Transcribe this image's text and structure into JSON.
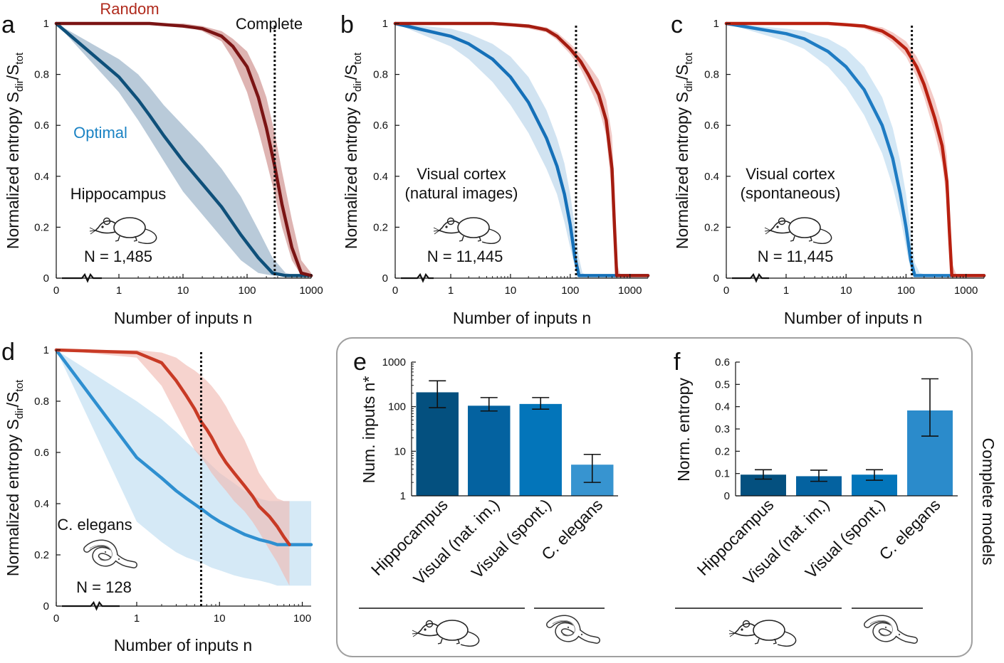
{
  "chart_data": [
    {
      "panel": "a",
      "type": "line",
      "annotation": "Hippocampus",
      "n_label": "N = 1,485",
      "xlabel": "Number of inputs n",
      "ylabel": "Normalized entropy S",
      "ylabel_sub1": "dir",
      "ylabel_mid": "/S",
      "ylabel_sub2": "tot",
      "x_ticks": [
        "0",
        "1",
        "10",
        "100",
        "1000"
      ],
      "y_ticks": [
        "0",
        "0.2",
        "0.4",
        "0.6",
        "0.8",
        "1"
      ],
      "xlim": [
        1,
        1000
      ],
      "ylim": [
        0,
        1
      ],
      "complete_x": 270,
      "complete_label": "Complete",
      "series": [
        {
          "name": "Random",
          "color": "#7b1414",
          "band_color": "#c98683",
          "x": [
            0,
            1,
            3,
            10,
            20,
            40,
            60,
            100,
            150,
            200,
            270,
            350,
            500,
            700,
            1000
          ],
          "y": [
            1,
            1,
            1,
            0.99,
            0.98,
            0.95,
            0.91,
            0.83,
            0.71,
            0.59,
            0.44,
            0.29,
            0.12,
            0.02,
            0.01
          ],
          "y_low": [
            1,
            1,
            1,
            0.99,
            0.97,
            0.93,
            0.86,
            0.73,
            0.58,
            0.46,
            0.33,
            0.2,
            0.07,
            0.01,
            0.01
          ],
          "y_high": [
            1,
            1,
            1,
            1,
            0.99,
            0.97,
            0.94,
            0.89,
            0.8,
            0.71,
            0.57,
            0.42,
            0.23,
            0.07,
            0.02
          ]
        },
        {
          "name": "Optimal",
          "color": "#0f507a",
          "band_color": "#8eaac2",
          "x": [
            0,
            1,
            2,
            3,
            5,
            10,
            20,
            40,
            80,
            150,
            250,
            400,
            600,
            1000
          ],
          "y": [
            1,
            0.79,
            0.7,
            0.64,
            0.56,
            0.46,
            0.37,
            0.28,
            0.17,
            0.08,
            0.02,
            0.01,
            0.01,
            0.01
          ],
          "y_low": [
            1,
            0.73,
            0.62,
            0.55,
            0.46,
            0.34,
            0.25,
            0.16,
            0.07,
            0.02,
            0.01,
            0.01,
            0.01,
            0.01
          ],
          "y_high": [
            1,
            0.86,
            0.8,
            0.75,
            0.68,
            0.6,
            0.52,
            0.43,
            0.32,
            0.19,
            0.08,
            0.02,
            0.01,
            0.01
          ]
        }
      ]
    },
    {
      "panel": "b",
      "type": "line",
      "annotation_line1": "Visual cortex",
      "annotation_line2": "(natural images)",
      "n_label": "N = 11,445",
      "xlabel": "Number of inputs n",
      "ylabel": "Normalized entropy S",
      "ylabel_sub1": "dir",
      "ylabel_mid": "/S",
      "ylabel_sub2": "tot",
      "x_ticks": [
        "0",
        "1",
        "10",
        "100",
        "1000"
      ],
      "y_ticks": [
        "0",
        "0.2",
        "0.4",
        "0.6",
        "0.8",
        "1"
      ],
      "xlim": [
        1,
        2000
      ],
      "ylim": [
        0,
        1
      ],
      "complete_x": 125,
      "series": [
        {
          "name": "Random",
          "color": "#a41c10",
          "band_color": "#e9a8a3",
          "x": [
            0,
            1,
            5,
            10,
            20,
            40,
            60,
            100,
            150,
            200,
            300,
            400,
            500,
            550,
            600,
            700,
            1000,
            2000
          ],
          "y": [
            1,
            1,
            1,
            0.995,
            0.99,
            0.975,
            0.95,
            0.9,
            0.85,
            0.8,
            0.72,
            0.62,
            0.43,
            0.2,
            0.01,
            0.01,
            0.01,
            0.01
          ],
          "y_low": [
            1,
            1,
            1,
            0.99,
            0.98,
            0.965,
            0.935,
            0.88,
            0.82,
            0.76,
            0.67,
            0.56,
            0.33,
            0.1,
            0.01,
            0.01,
            0.01,
            0.01
          ],
          "y_high": [
            1,
            1,
            1,
            1,
            0.995,
            0.985,
            0.965,
            0.92,
            0.88,
            0.84,
            0.78,
            0.7,
            0.56,
            0.35,
            0.06,
            0.01,
            0.01,
            0.01
          ]
        },
        {
          "name": "Optimal",
          "color": "#1570b8",
          "band_color": "#b4d2e8",
          "x": [
            0,
            1,
            2,
            5,
            10,
            20,
            40,
            60,
            80,
            100,
            120,
            140,
            160,
            200,
            300,
            2000
          ],
          "y": [
            1,
            0.95,
            0.92,
            0.86,
            0.79,
            0.69,
            0.55,
            0.44,
            0.33,
            0.21,
            0.08,
            0.01,
            0.01,
            0.01,
            0.01,
            0.01
          ],
          "y_low": [
            1,
            0.91,
            0.86,
            0.77,
            0.68,
            0.57,
            0.43,
            0.33,
            0.22,
            0.12,
            0.04,
            0.01,
            0.01,
            0.01,
            0.01,
            0.01
          ],
          "y_high": [
            1,
            0.98,
            0.96,
            0.92,
            0.87,
            0.79,
            0.66,
            0.55,
            0.45,
            0.33,
            0.2,
            0.08,
            0.02,
            0.01,
            0.01,
            0.01
          ]
        }
      ]
    },
    {
      "panel": "c",
      "type": "line",
      "annotation_line1": "Visual cortex",
      "annotation_line2": "(spontaneous)",
      "n_label": "N = 11,445",
      "xlabel": "Number of inputs n",
      "ylabel": "Normalized entropy S",
      "ylabel_sub1": "dir",
      "ylabel_mid": "/S",
      "ylabel_sub2": "tot",
      "x_ticks": [
        "0",
        "1",
        "10",
        "100",
        "1000"
      ],
      "y_ticks": [
        "0",
        "0.2",
        "0.4",
        "0.6",
        "0.8",
        "1"
      ],
      "xlim": [
        1,
        2000
      ],
      "ylim": [
        0,
        1
      ],
      "complete_x": 125,
      "series": [
        {
          "name": "Random",
          "color": "#b82010",
          "band_color": "#eeaaa3",
          "x": [
            0,
            1,
            5,
            10,
            20,
            40,
            60,
            100,
            150,
            200,
            300,
            400,
            480,
            530,
            580,
            700,
            2000
          ],
          "y": [
            1,
            1,
            1,
            0.995,
            0.99,
            0.97,
            0.945,
            0.9,
            0.83,
            0.76,
            0.63,
            0.52,
            0.38,
            0.18,
            0.01,
            0.01,
            0.01
          ],
          "y_low": [
            1,
            1,
            1,
            0.99,
            0.98,
            0.955,
            0.925,
            0.87,
            0.79,
            0.71,
            0.57,
            0.45,
            0.3,
            0.1,
            0.01,
            0.01,
            0.01
          ],
          "y_high": [
            1,
            1,
            1,
            1,
            0.995,
            0.985,
            0.965,
            0.93,
            0.87,
            0.81,
            0.7,
            0.6,
            0.48,
            0.3,
            0.06,
            0.01,
            0.01
          ]
        },
        {
          "name": "Optimal",
          "color": "#1f7cc3",
          "band_color": "#b8d8ef",
          "x": [
            0,
            1,
            2,
            5,
            10,
            20,
            40,
            60,
            80,
            100,
            120,
            140,
            170,
            250,
            2000
          ],
          "y": [
            1,
            0.96,
            0.94,
            0.89,
            0.83,
            0.74,
            0.6,
            0.47,
            0.33,
            0.2,
            0.07,
            0.01,
            0.01,
            0.01,
            0.01
          ],
          "y_low": [
            1,
            0.93,
            0.9,
            0.83,
            0.75,
            0.64,
            0.49,
            0.36,
            0.24,
            0.12,
            0.03,
            0.01,
            0.01,
            0.01,
            0.01
          ],
          "y_high": [
            1,
            0.98,
            0.97,
            0.94,
            0.9,
            0.83,
            0.71,
            0.59,
            0.46,
            0.33,
            0.18,
            0.06,
            0.02,
            0.01,
            0.01
          ]
        }
      ]
    },
    {
      "panel": "d",
      "type": "line",
      "annotation": "C. elegans",
      "n_label": "N = 128",
      "xlabel": "Number of inputs n",
      "ylabel": "Normalized entropy S",
      "ylabel_sub1": "dir",
      "ylabel_mid": "/S",
      "ylabel_sub2": "tot",
      "x_ticks": [
        "0",
        "1",
        "10",
        "100"
      ],
      "y_ticks": [
        "0",
        "0.2",
        "0.4",
        "0.6",
        "0.8",
        "1"
      ],
      "xlim": [
        1,
        128
      ],
      "ylim": [
        0,
        1
      ],
      "complete_x": 6,
      "series": [
        {
          "name": "Random",
          "color": "#c83a25",
          "band_color": "#f0b8b0",
          "x": [
            0,
            1,
            2,
            3,
            4,
            5,
            6,
            7,
            8,
            10,
            12,
            15,
            20,
            25,
            30,
            40,
            50,
            60,
            70
          ],
          "y": [
            1,
            0.99,
            0.95,
            0.88,
            0.82,
            0.77,
            0.72,
            0.69,
            0.66,
            0.6,
            0.56,
            0.52,
            0.47,
            0.43,
            0.39,
            0.35,
            0.31,
            0.27,
            0.24
          ],
          "y_low": [
            1,
            0.97,
            0.86,
            0.75,
            0.67,
            0.61,
            0.58,
            0.55,
            0.52,
            0.48,
            0.45,
            0.41,
            0.37,
            0.33,
            0.29,
            0.22,
            0.17,
            0.12,
            0.08
          ],
          "y_high": [
            1,
            1,
            0.99,
            0.97,
            0.94,
            0.92,
            0.9,
            0.88,
            0.86,
            0.82,
            0.78,
            0.72,
            0.65,
            0.58,
            0.52,
            0.46,
            0.42,
            0.41,
            0.41
          ]
        },
        {
          "name": "Optimal",
          "color": "#2e8fd0",
          "band_color": "#bcdcf0",
          "x": [
            0,
            1,
            2,
            3,
            4,
            6,
            8,
            10,
            15,
            20,
            30,
            40,
            50,
            70,
            100,
            128
          ],
          "y": [
            1,
            0.58,
            0.5,
            0.45,
            0.42,
            0.38,
            0.35,
            0.33,
            0.3,
            0.28,
            0.26,
            0.25,
            0.24,
            0.24,
            0.24,
            0.24
          ],
          "y_low": [
            1,
            0.33,
            0.25,
            0.21,
            0.19,
            0.17,
            0.15,
            0.14,
            0.12,
            0.11,
            0.1,
            0.09,
            0.08,
            0.08,
            0.08,
            0.08
          ],
          "y_high": [
            1,
            0.8,
            0.73,
            0.68,
            0.64,
            0.59,
            0.55,
            0.52,
            0.48,
            0.45,
            0.42,
            0.41,
            0.41,
            0.41,
            0.41,
            0.41
          ]
        }
      ]
    },
    {
      "panel": "e",
      "type": "bar",
      "yscale": "log",
      "ylabel": "Num. inputs n*",
      "y_ticks": [
        "1",
        "10",
        "100",
        "1000"
      ],
      "ylim": [
        1,
        1000
      ],
      "categories": [
        "Hippocampus",
        "Visual (nat. im.)",
        "Visual (spont.)",
        "C. elegans"
      ],
      "values": [
        210,
        105,
        115,
        5
      ],
      "err_low": [
        95,
        80,
        88,
        2
      ],
      "err_high": [
        380,
        160,
        160,
        8.5
      ],
      "colors": [
        "#04507f",
        "#0462a0",
        "#0375ba",
        "#3794d0"
      ]
    },
    {
      "panel": "f",
      "type": "bar",
      "ylabel": "Norm. entropy",
      "y_ticks": [
        "0",
        "0.1",
        "0.2",
        "0.3",
        "0.4",
        "0.5",
        "0.6"
      ],
      "ylim": [
        0,
        0.6
      ],
      "categories": [
        "Hippocampus",
        "Visual (nat. im.)",
        "Visual (spont.)",
        "C. elegans"
      ],
      "values": [
        0.095,
        0.088,
        0.095,
        0.383
      ],
      "err_low": [
        0.075,
        0.065,
        0.07,
        0.268
      ],
      "err_high": [
        0.117,
        0.115,
        0.117,
        0.525
      ],
      "colors": [
        "#04507f",
        "#0462a0",
        "#0375ba",
        "#2b8bcb"
      ]
    }
  ],
  "labels": {
    "panel_a": "a",
    "panel_b": "b",
    "panel_c": "c",
    "panel_d": "d",
    "panel_e": "e",
    "panel_f": "f",
    "random": "Random",
    "optimal": "Optimal",
    "complete": "Complete",
    "complete_models": "Complete models"
  },
  "colors": {
    "random_label": "#b02a1c",
    "optimal_label": "#1b83c4",
    "axis": "#111111",
    "box_border": "#a0a0a0"
  }
}
